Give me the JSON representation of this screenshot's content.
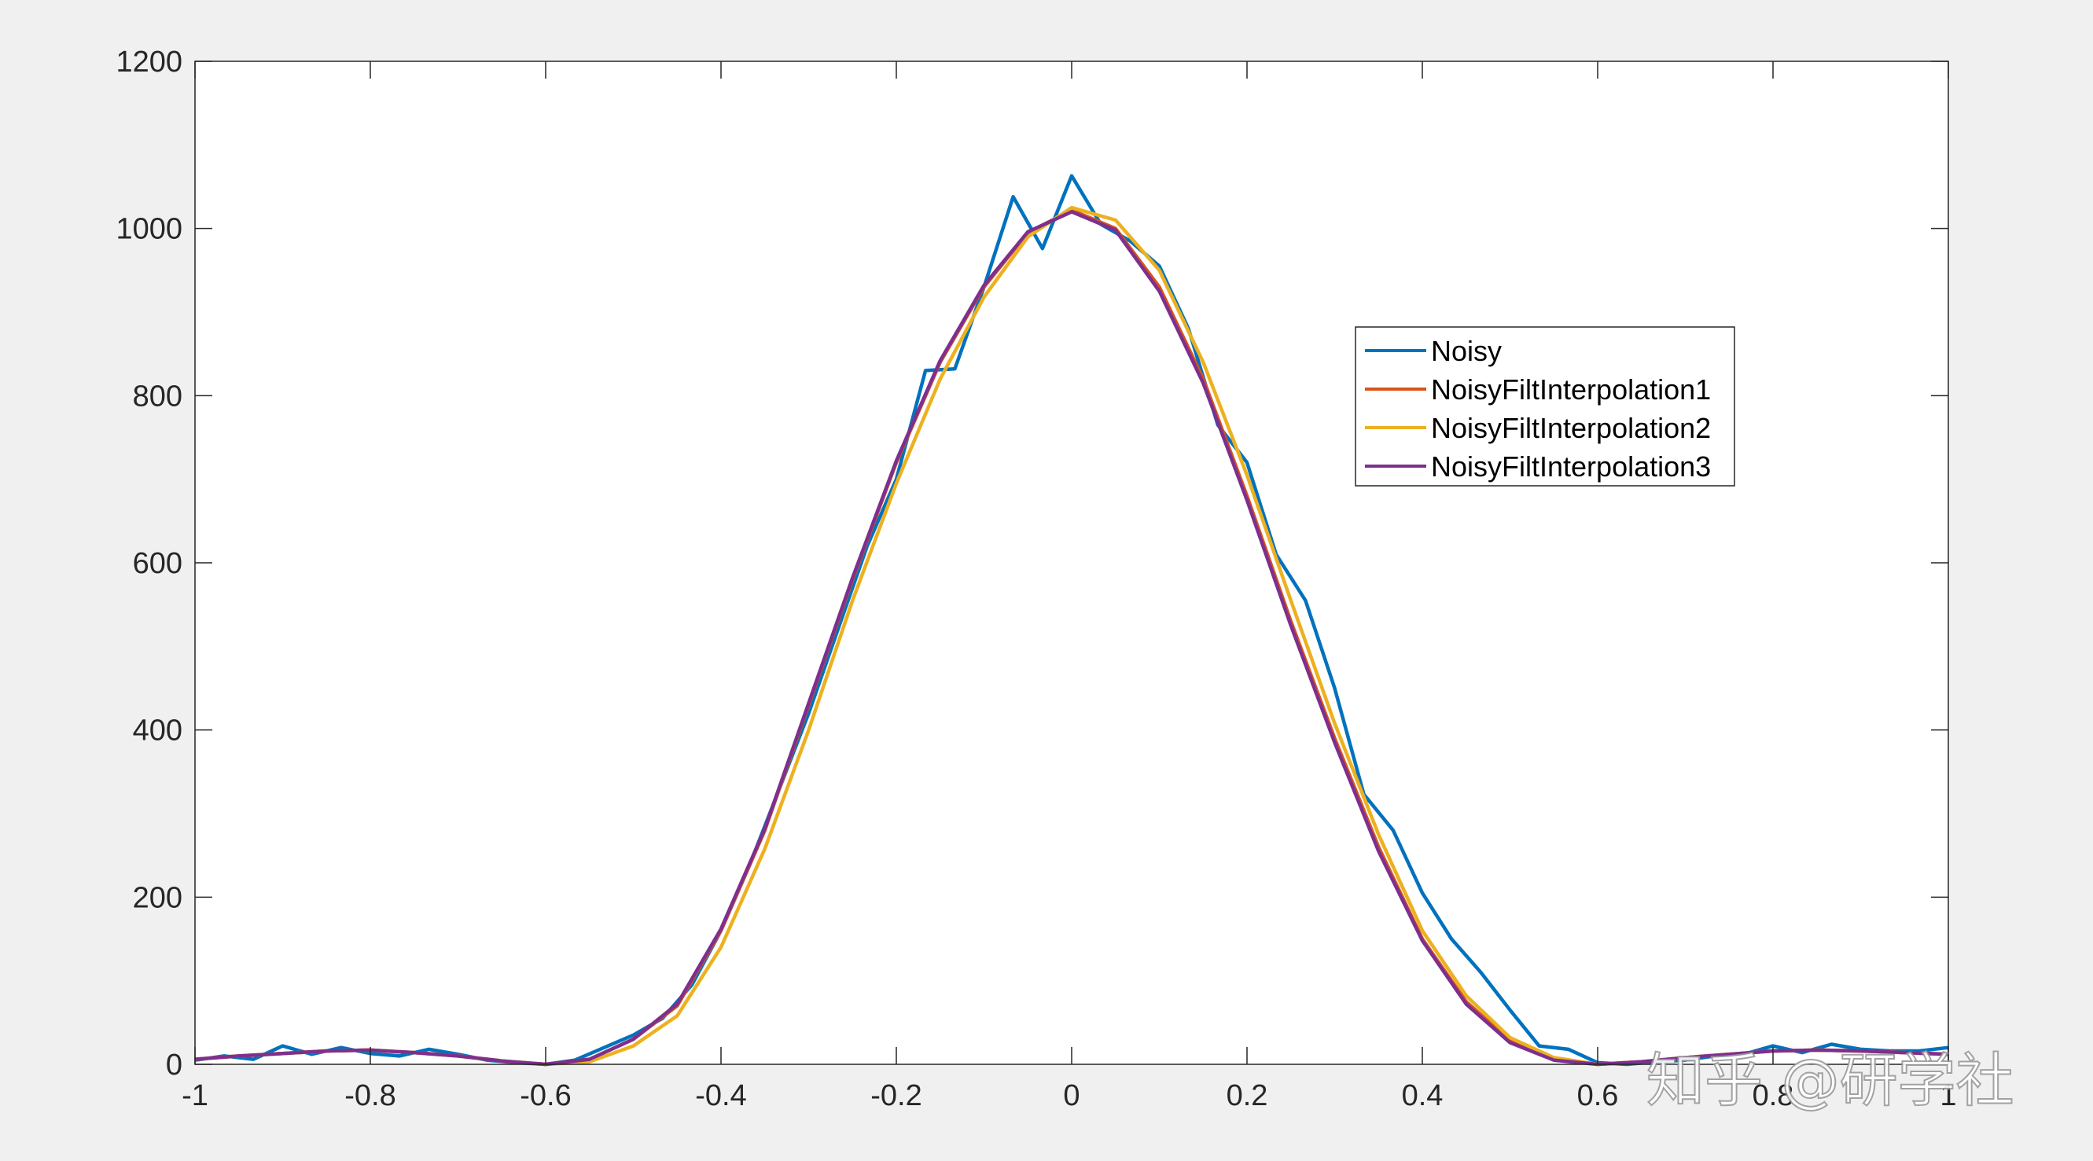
{
  "chart_data": {
    "type": "line",
    "title": "",
    "xlabel": "",
    "ylabel": "",
    "xlim": [
      -1,
      1
    ],
    "ylim": [
      0,
      1200
    ],
    "x_ticks": [
      -1,
      -0.8,
      -0.6,
      -0.4,
      -0.2,
      0,
      0.2,
      0.4,
      0.6,
      0.8,
      1
    ],
    "x_tick_labels": [
      "-1",
      "-0.8",
      "-0.6",
      "-0.4",
      "-0.2",
      "0",
      "0.2",
      "0.4",
      "0.6",
      "0.8",
      "1"
    ],
    "y_ticks": [
      0,
      200,
      400,
      600,
      800,
      1000,
      1200
    ],
    "y_tick_labels": [
      "0",
      "200",
      "400",
      "600",
      "800",
      "1000",
      "1200"
    ],
    "grid": false,
    "legend_position": "upper-right-inside",
    "series": [
      {
        "name": "Noisy",
        "color": "#0072BD",
        "x": [
          -1.0,
          -0.9667,
          -0.9333,
          -0.9,
          -0.8667,
          -0.8333,
          -0.8,
          -0.7667,
          -0.7333,
          -0.7,
          -0.6667,
          -0.6333,
          -0.6,
          -0.5667,
          -0.5333,
          -0.5,
          -0.4667,
          -0.4333,
          -0.4,
          -0.3667,
          -0.3333,
          -0.3,
          -0.2667,
          -0.2333,
          -0.2,
          -0.1667,
          -0.1333,
          -0.1,
          -0.0667,
          -0.0333,
          0.0,
          0.0333,
          0.0667,
          0.1,
          0.1333,
          0.1667,
          0.2,
          0.2333,
          0.2667,
          0.3,
          0.3333,
          0.3667,
          0.4,
          0.4333,
          0.4667,
          0.5,
          0.5333,
          0.5667,
          0.6,
          0.6333,
          0.6667,
          0.7,
          0.7333,
          0.7667,
          0.8,
          0.8333,
          0.8667,
          0.9,
          0.9333,
          0.9667,
          1.0
        ],
        "y": [
          5,
          10,
          6,
          22,
          12,
          20,
          13,
          10,
          18,
          12,
          5,
          2,
          0,
          5,
          20,
          35,
          55,
          95,
          160,
          240,
          330,
          420,
          520,
          620,
          700,
          830,
          832,
          930,
          1038,
          976,
          1063,
          1005,
          985,
          955,
          880,
          765,
          720,
          610,
          555,
          450,
          323,
          280,
          205,
          150,
          110,
          65,
          22,
          18,
          2,
          0,
          3,
          5,
          10,
          12,
          22,
          14,
          24,
          18,
          16,
          16,
          20
        ]
      },
      {
        "name": "NoisyFiltInterpolation1",
        "color": "#D95319",
        "x": [
          -1.0,
          -0.95,
          -0.9,
          -0.85,
          -0.8,
          -0.75,
          -0.7,
          -0.65,
          -0.6,
          -0.55,
          -0.5,
          -0.45,
          -0.4,
          -0.35,
          -0.3,
          -0.25,
          -0.2,
          -0.15,
          -0.1,
          -0.05,
          0.0,
          0.05,
          0.1,
          0.15,
          0.2,
          0.25,
          0.3,
          0.35,
          0.4,
          0.45,
          0.5,
          0.55,
          0.6,
          0.65,
          0.7,
          0.75,
          0.8,
          0.85,
          0.9,
          0.95,
          1.0
        ],
        "y": [
          6,
          10,
          13,
          16,
          17,
          14,
          10,
          4,
          0,
          6,
          30,
          70,
          160,
          280,
          430,
          580,
          720,
          840,
          930,
          995,
          1022,
          1000,
          930,
          820,
          680,
          530,
          390,
          260,
          150,
          75,
          28,
          6,
          0,
          3,
          8,
          12,
          16,
          17,
          16,
          14,
          12
        ]
      },
      {
        "name": "NoisyFiltInterpolation2",
        "color": "#EDB120",
        "x": [
          -1.0,
          -0.95,
          -0.9,
          -0.85,
          -0.8,
          -0.75,
          -0.7,
          -0.65,
          -0.6,
          -0.55,
          -0.5,
          -0.45,
          -0.4,
          -0.35,
          -0.3,
          -0.25,
          -0.2,
          -0.15,
          -0.1,
          -0.05,
          0.0,
          0.05,
          0.1,
          0.15,
          0.2,
          0.25,
          0.3,
          0.35,
          0.4,
          0.45,
          0.5,
          0.55,
          0.6,
          0.65,
          0.7,
          0.75,
          0.8,
          0.85,
          0.9,
          0.95,
          1.0
        ],
        "y": [
          6,
          10,
          13,
          16,
          17,
          14,
          10,
          4,
          0,
          3,
          22,
          58,
          140,
          258,
          400,
          555,
          695,
          820,
          918,
          990,
          1025,
          1010,
          950,
          840,
          705,
          555,
          408,
          275,
          160,
          82,
          32,
          8,
          0,
          3,
          8,
          12,
          16,
          17,
          16,
          14,
          12
        ]
      },
      {
        "name": "NoisyFiltInterpolation3",
        "color": "#7E2F8E",
        "x": [
          -1.0,
          -0.95,
          -0.9,
          -0.85,
          -0.8,
          -0.75,
          -0.7,
          -0.65,
          -0.6,
          -0.55,
          -0.5,
          -0.45,
          -0.4,
          -0.35,
          -0.3,
          -0.25,
          -0.2,
          -0.15,
          -0.1,
          -0.05,
          0.0,
          0.05,
          0.1,
          0.15,
          0.2,
          0.25,
          0.3,
          0.35,
          0.4,
          0.45,
          0.5,
          0.55,
          0.6,
          0.65,
          0.7,
          0.75,
          0.8,
          0.85,
          0.9,
          0.95,
          1.0
        ],
        "y": [
          6,
          10,
          13,
          16,
          17,
          14,
          10,
          4,
          0,
          6,
          30,
          72,
          162,
          282,
          432,
          582,
          722,
          842,
          932,
          996,
          1020,
          998,
          925,
          815,
          675,
          525,
          385,
          255,
          148,
          72,
          26,
          5,
          0,
          3,
          8,
          12,
          16,
          17,
          16,
          14,
          12
        ]
      }
    ]
  },
  "watermark": "知乎 @研学社"
}
